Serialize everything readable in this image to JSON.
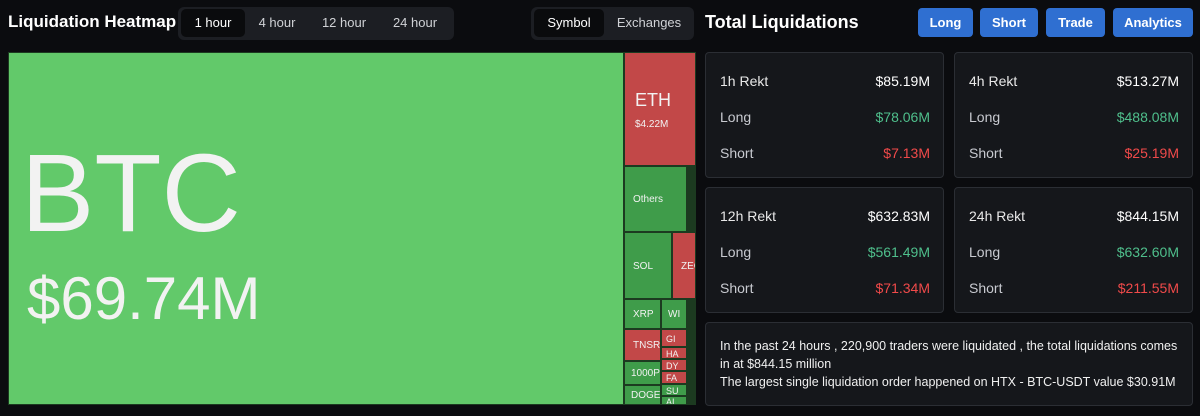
{
  "header": {
    "title": "Liquidation Heatmap",
    "time_tabs": [
      "1 hour",
      "4 hour",
      "12 hour",
      "24 hour"
    ],
    "view_tabs": [
      "Symbol",
      "Exchanges"
    ]
  },
  "heatmap": {
    "tiles": [
      {
        "symbol": "BTC",
        "value": "$69.74M"
      },
      {
        "symbol": "ETH",
        "value": "$4.22M"
      },
      {
        "symbol": "Others"
      },
      {
        "symbol": "SOL"
      },
      {
        "symbol": "ZEC"
      },
      {
        "symbol": "XRP"
      },
      {
        "symbol": "WI"
      },
      {
        "symbol": "TNSR"
      },
      {
        "symbol": "GI"
      },
      {
        "symbol": "HA"
      },
      {
        "symbol": "DY"
      },
      {
        "symbol": "FA"
      },
      {
        "symbol": "1000P"
      },
      {
        "symbol": "SU"
      },
      {
        "symbol": "DOGE"
      },
      {
        "symbol": "AI"
      }
    ]
  },
  "summary": {
    "title": "Total Liquidations",
    "buttons": [
      "Long",
      "Short",
      "Trade",
      "Analytics"
    ],
    "cards": [
      {
        "label": "1h Rekt",
        "total": "$85.19M",
        "long_label": "Long",
        "long": "$78.06M",
        "short_label": "Short",
        "short": "$7.13M"
      },
      {
        "label": "4h Rekt",
        "total": "$513.27M",
        "long_label": "Long",
        "long": "$488.08M",
        "short_label": "Short",
        "short": "$25.19M"
      },
      {
        "label": "12h Rekt",
        "total": "$632.83M",
        "long_label": "Long",
        "long": "$561.49M",
        "short_label": "Short",
        "short": "$71.34M"
      },
      {
        "label": "24h Rekt",
        "total": "$844.15M",
        "long_label": "Long",
        "long": "$632.60M",
        "short_label": "Short",
        "short": "$211.55M"
      }
    ],
    "notes": [
      "In the past 24 hours , 220,900 traders were liquidated , the total liquidations comes in at $844.15 million",
      "The largest single liquidation order happened on HTX - BTC-USDT value $30.91M"
    ]
  }
}
